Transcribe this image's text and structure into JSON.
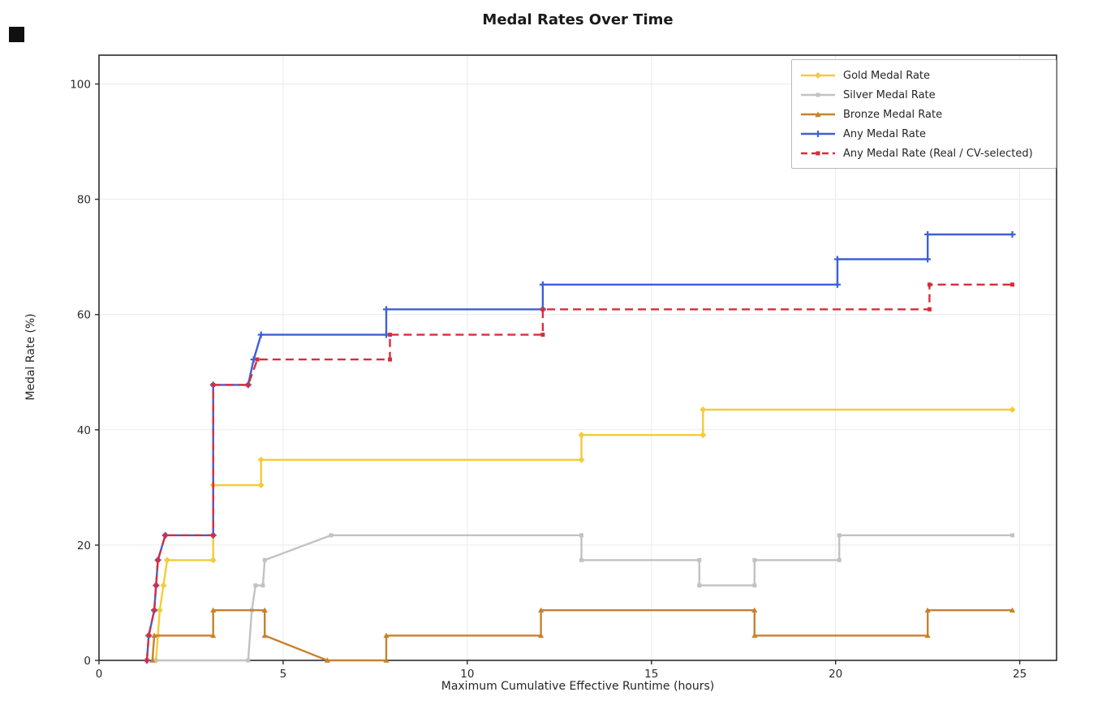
{
  "figure": {
    "background": "#ffffff",
    "artifact_color": "#101010"
  },
  "chart_data": {
    "type": "line",
    "title": "Medal Rates Over Time",
    "xlabel": "Maximum Cumulative Effective Runtime (hours)",
    "ylabel": "Medal Rate (%)",
    "xlim": [
      0,
      26
    ],
    "ylim": [
      0,
      105
    ],
    "xticks": [
      0,
      5,
      10,
      15,
      20,
      25
    ],
    "yticks": [
      0,
      20,
      40,
      60,
      80,
      100
    ],
    "grid": true,
    "grid_color": "#eaeaea",
    "spine_color": "#2b2b2b",
    "legend_position": "upper right",
    "series": [
      {
        "name": "Gold Medal Rate",
        "color": "#F2CC3A",
        "dash": null,
        "marker": "diamond",
        "points": [
          [
            1.55,
            0
          ],
          [
            1.6,
            4.3
          ],
          [
            1.65,
            8.7
          ],
          [
            1.75,
            13.0
          ],
          [
            1.85,
            17.4
          ],
          [
            3.1,
            17.4
          ],
          [
            3.1,
            30.4
          ],
          [
            4.4,
            30.4
          ],
          [
            4.4,
            34.8
          ],
          [
            13.1,
            34.8
          ],
          [
            13.1,
            39.1
          ],
          [
            16.4,
            39.1
          ],
          [
            16.4,
            43.5
          ],
          [
            24.8,
            43.5
          ]
        ]
      },
      {
        "name": "Silver Medal Rate",
        "color": "#C2C2C2",
        "dash": null,
        "marker": "square",
        "points": [
          [
            1.5,
            0
          ],
          [
            4.05,
            0
          ],
          [
            4.15,
            8.7
          ],
          [
            4.25,
            13.0
          ],
          [
            4.45,
            13.0
          ],
          [
            4.5,
            17.4
          ],
          [
            6.3,
            21.7
          ],
          [
            13.1,
            21.7
          ],
          [
            13.1,
            17.4
          ],
          [
            16.3,
            17.4
          ],
          [
            16.3,
            13.0
          ],
          [
            17.8,
            13.0
          ],
          [
            17.8,
            17.4
          ],
          [
            20.1,
            17.4
          ],
          [
            20.1,
            21.7
          ],
          [
            24.8,
            21.7
          ]
        ]
      },
      {
        "name": "Bronze Medal Rate",
        "color": "#C8812F",
        "dash": null,
        "marker": "triangle",
        "points": [
          [
            1.45,
            0
          ],
          [
            1.5,
            4.3
          ],
          [
            3.1,
            4.3
          ],
          [
            3.1,
            8.7
          ],
          [
            4.5,
            8.7
          ],
          [
            4.5,
            4.3
          ],
          [
            6.2,
            0
          ],
          [
            7.8,
            0
          ],
          [
            7.8,
            4.3
          ],
          [
            12.0,
            4.3
          ],
          [
            12.0,
            8.7
          ],
          [
            17.8,
            8.7
          ],
          [
            17.8,
            4.3
          ],
          [
            22.5,
            4.3
          ],
          [
            22.5,
            8.7
          ],
          [
            24.8,
            8.7
          ]
        ]
      },
      {
        "name": "Any Medal Rate",
        "color": "#3F5FD8",
        "dash": null,
        "marker": "plus",
        "points": [
          [
            1.3,
            0
          ],
          [
            1.35,
            4.3
          ],
          [
            1.5,
            8.7
          ],
          [
            1.55,
            13.0
          ],
          [
            1.6,
            17.4
          ],
          [
            1.8,
            21.7
          ],
          [
            3.1,
            21.7
          ],
          [
            3.1,
            47.8
          ],
          [
            4.05,
            47.8
          ],
          [
            4.2,
            52.2
          ],
          [
            4.4,
            56.5
          ],
          [
            7.8,
            56.5
          ],
          [
            7.8,
            60.9
          ],
          [
            12.05,
            60.9
          ],
          [
            12.05,
            65.2
          ],
          [
            20.05,
            65.2
          ],
          [
            20.05,
            69.6
          ],
          [
            22.5,
            69.6
          ],
          [
            22.5,
            73.9
          ],
          [
            24.8,
            73.9
          ]
        ]
      },
      {
        "name": "Any Medal Rate (Real / CV-selected)",
        "color": "#D62E3C",
        "dash": "10 6",
        "marker": "square",
        "points": [
          [
            1.3,
            0
          ],
          [
            1.35,
            4.3
          ],
          [
            1.5,
            8.7
          ],
          [
            1.55,
            13.0
          ],
          [
            1.6,
            17.4
          ],
          [
            1.8,
            21.7
          ],
          [
            3.1,
            21.7
          ],
          [
            3.1,
            47.8
          ],
          [
            4.05,
            47.8
          ],
          [
            4.3,
            52.2
          ],
          [
            7.9,
            52.2
          ],
          [
            7.9,
            56.5
          ],
          [
            12.05,
            56.5
          ],
          [
            12.05,
            60.9
          ],
          [
            22.55,
            60.9
          ],
          [
            22.55,
            65.2
          ],
          [
            24.8,
            65.2
          ]
        ]
      }
    ]
  }
}
